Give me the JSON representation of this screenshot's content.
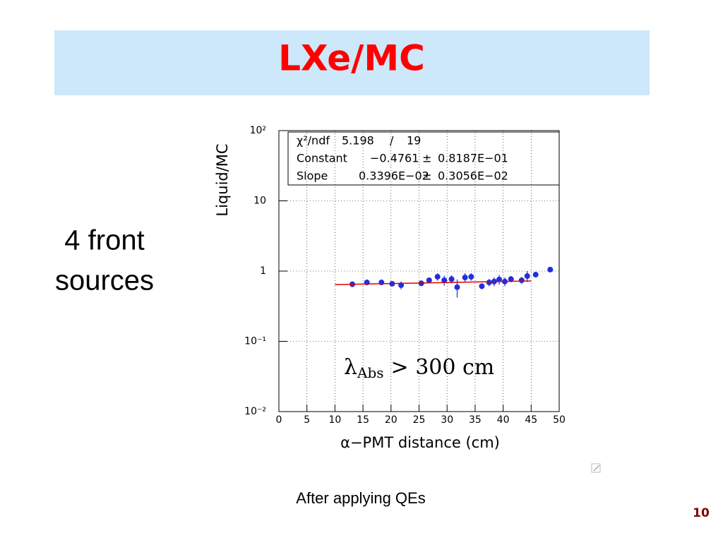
{
  "slide": {
    "title": "LXe/MC",
    "side_text": [
      "4 front",
      "sources"
    ],
    "caption": "After applying QEs",
    "page_number": "10"
  },
  "chart_data": {
    "type": "scatter",
    "x_label": "α−PMT distance (cm)",
    "y_label": "Liquid/MC",
    "xlim": [
      0,
      50
    ],
    "xticks": [
      0,
      5,
      10,
      15,
      20,
      25,
      30,
      35,
      40,
      45,
      50
    ],
    "ylim": [
      0.01,
      100
    ],
    "y_log": true,
    "grid": true,
    "yticks": [
      {
        "value": 0.01,
        "label": "10⁻²"
      },
      {
        "value": 0.1,
        "label": "10⁻¹"
      },
      1,
      10,
      {
        "value": 100,
        "label": "10²"
      }
    ],
    "stats": [
      [
        "χ²/ndf",
        "5.198",
        "/",
        "19"
      ],
      [
        "Constant",
        "−0.4761",
        "±",
        "0.8187E−01"
      ],
      [
        "Slope",
        "0.3396E−02",
        "±",
        "0.3056E−02"
      ]
    ],
    "annotation": [
      "λ",
      "Abs",
      "> 300 cm"
    ],
    "series": [
      {
        "type": "scatter",
        "color": "#1f2fe0",
        "x": [
          13.1,
          15.7,
          18.3,
          20.2,
          21.8,
          25.4,
          26.8,
          28.3,
          29.5,
          30.8,
          31.8,
          33.2,
          34.3,
          36.2,
          37.5,
          38.4,
          39.3,
          40.3,
          41.4,
          43.3,
          44.3,
          45.8,
          48.4
        ],
        "values": [
          0.65,
          0.69,
          0.69,
          0.66,
          0.63,
          0.67,
          0.74,
          0.83,
          0.74,
          0.77,
          0.59,
          0.81,
          0.83,
          0.61,
          0.69,
          0.71,
          0.76,
          0.71,
          0.77,
          0.74,
          0.85,
          0.89,
          1.05
        ],
        "errors": [
          0.05,
          0.06,
          0.06,
          0.05,
          0.08,
          0.06,
          0.07,
          0.1,
          0.12,
          0.1,
          0.17,
          0.12,
          0.1,
          0.06,
          0.08,
          0.1,
          0.12,
          0.1,
          0.08,
          0.08,
          0.15,
          0.08,
          0.05
        ]
      },
      {
        "type": "line",
        "color": "#e00000",
        "x": [
          10,
          45
        ],
        "values": [
          0.643,
          0.724
        ]
      }
    ]
  }
}
